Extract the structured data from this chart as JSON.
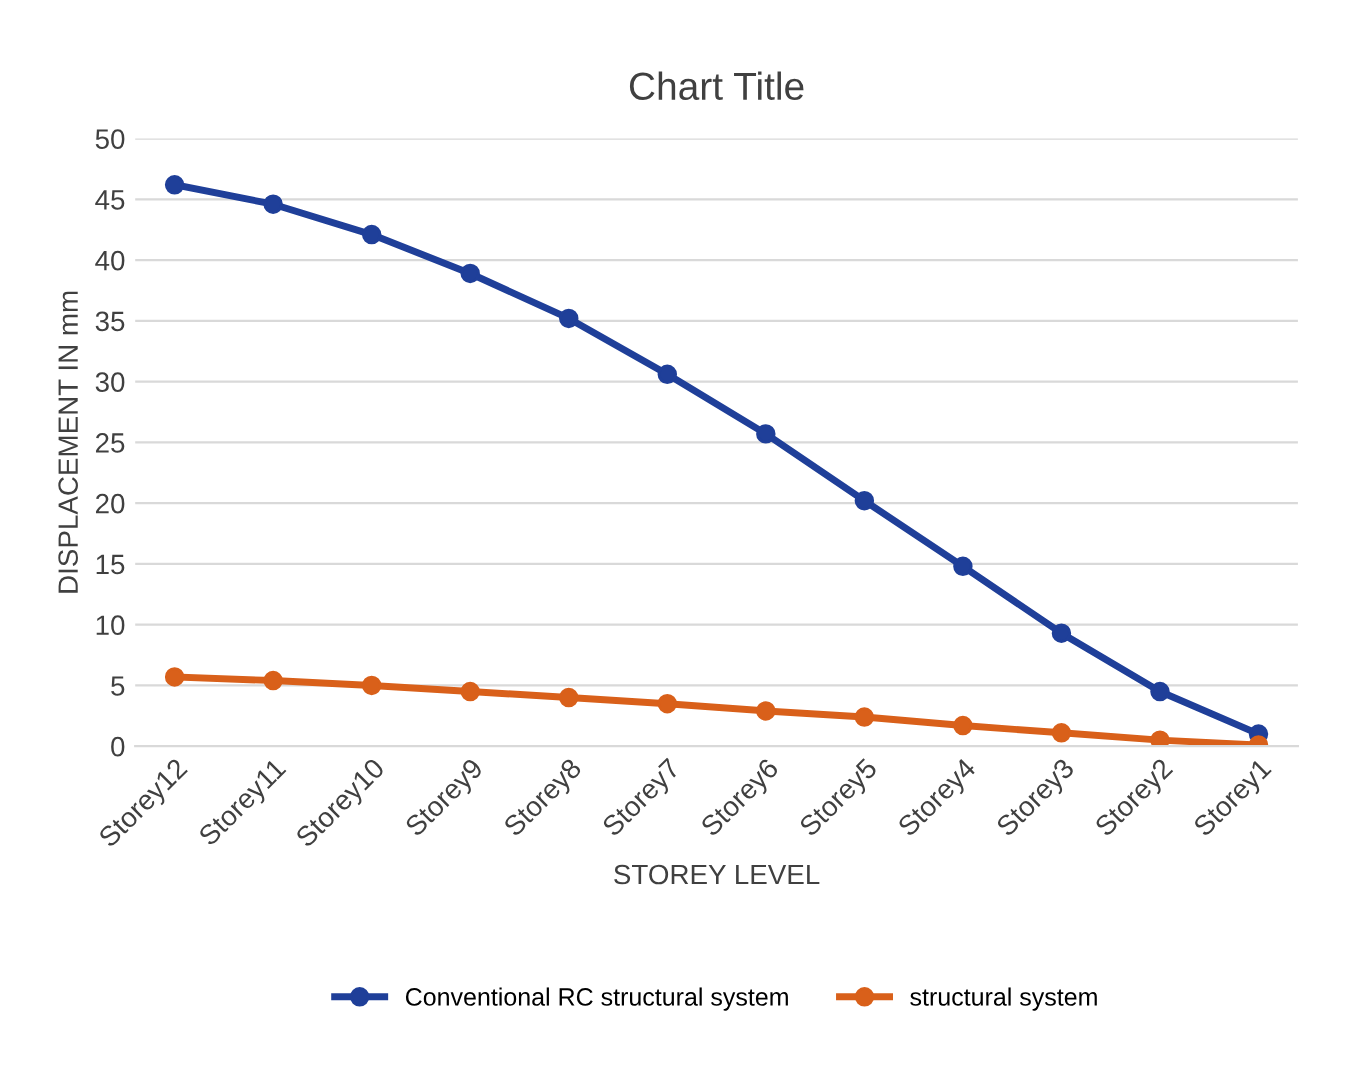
{
  "chart_data": {
    "type": "line",
    "title": "Chart Title",
    "xlabel": "STOREY LEVEL",
    "ylabel": "DISPLACEMENT IN mm",
    "categories": [
      "Storey12",
      "Storey11",
      "Storey10",
      "Storey9",
      "Storey8",
      "Storey7",
      "Storey6",
      "Storey5",
      "Storey4",
      "Storey3",
      "Storey2",
      "Storey1"
    ],
    "series": [
      {
        "name": "Conventional RC structural system",
        "color": "#1f3f99",
        "values": [
          46.2,
          44.6,
          42.1,
          38.9,
          35.2,
          30.6,
          25.7,
          20.2,
          14.8,
          9.3,
          4.5,
          1.0
        ]
      },
      {
        "name": "structural system",
        "color": "#d9601a",
        "values": [
          5.7,
          5.4,
          5.0,
          4.5,
          4.0,
          3.5,
          2.9,
          2.4,
          1.7,
          1.1,
          0.5,
          0.1
        ]
      }
    ],
    "ylim": [
      0,
      50
    ],
    "yticks": [
      0,
      5,
      10,
      15,
      20,
      25,
      30,
      35,
      40,
      45,
      50
    ],
    "grid": "y",
    "legend": "bottom",
    "marker": "circle",
    "line_style": "solid"
  }
}
